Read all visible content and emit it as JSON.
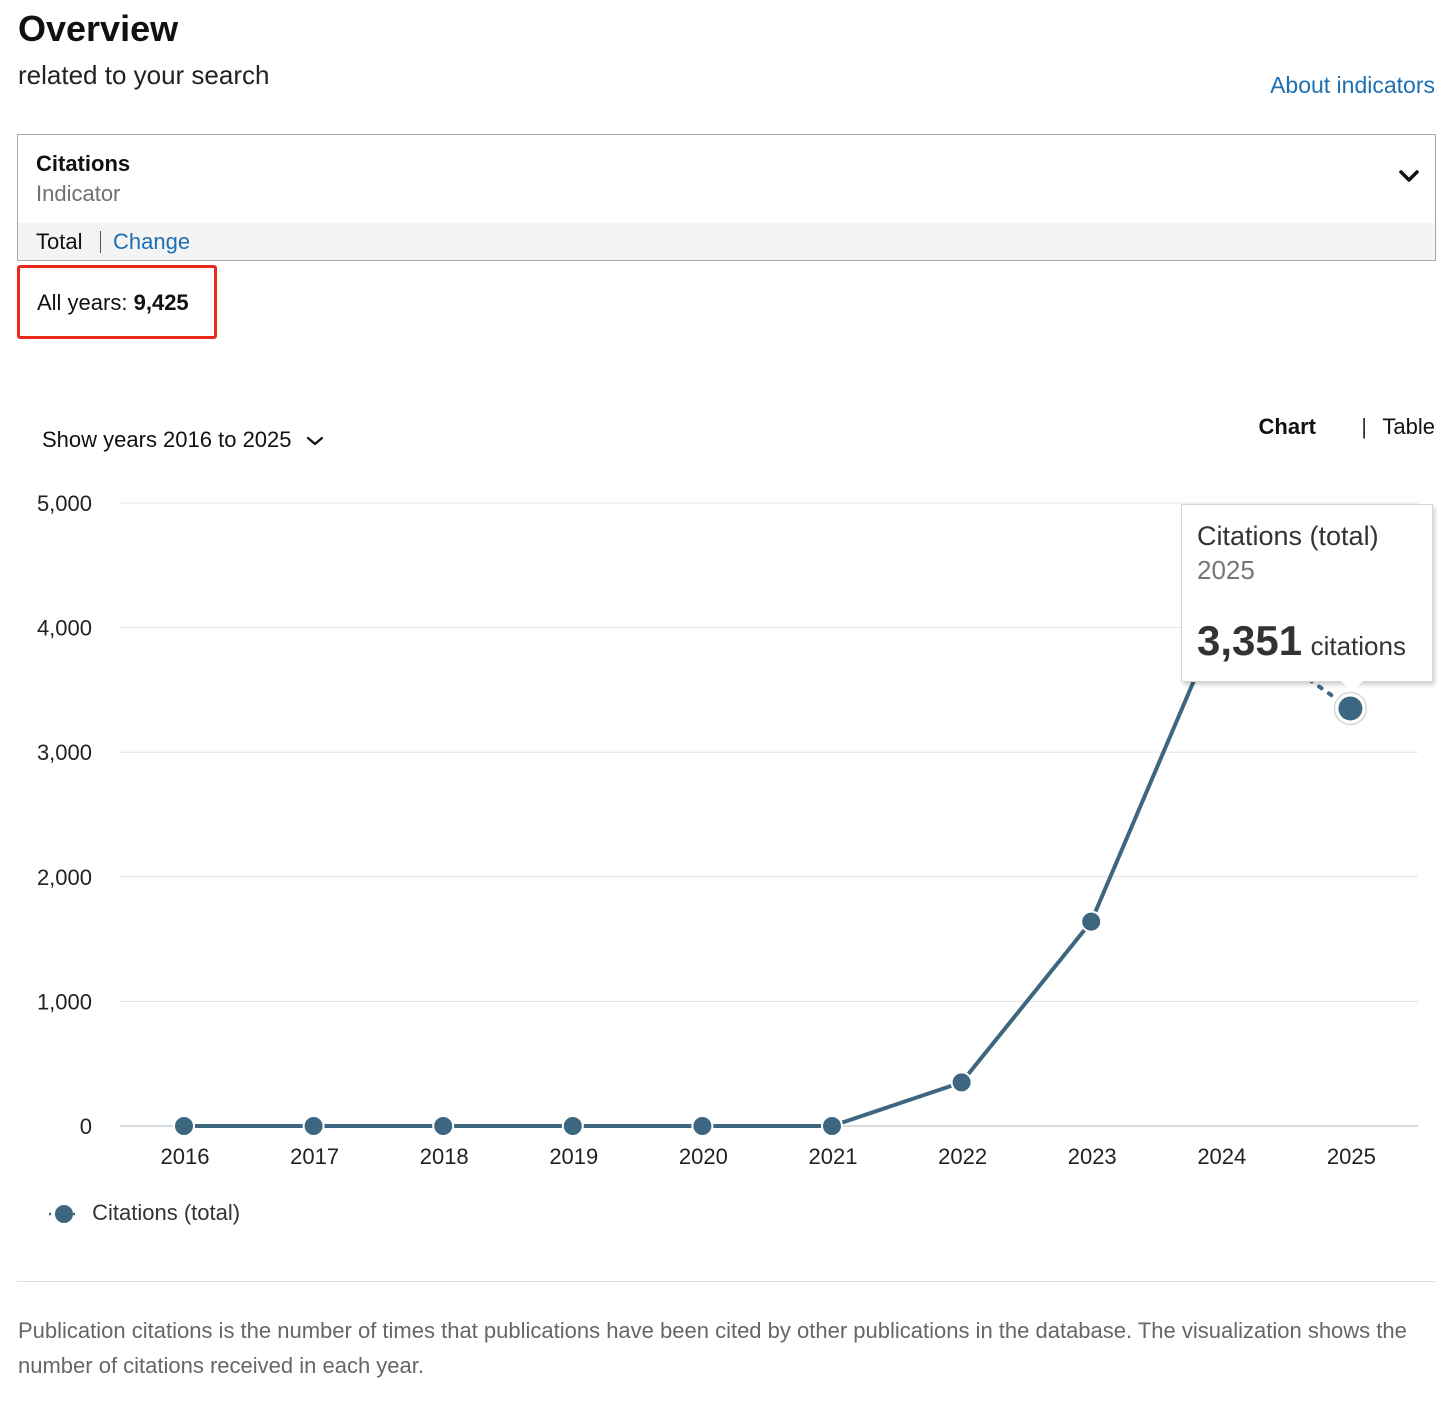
{
  "header": {
    "title": "Overview",
    "subtitle": "related to your search",
    "about_link": "About indicators"
  },
  "indicator": {
    "name": "Citations",
    "label": "Indicator"
  },
  "metric_bar": {
    "type": "Total",
    "change_link": "Change"
  },
  "all_years": {
    "label": "All years:",
    "value": "9,425"
  },
  "controls": {
    "years_select": "Show years 2016 to 2025",
    "tabs": [
      "Chart",
      "|",
      "Table"
    ]
  },
  "tooltip": {
    "series": "Citations (total)",
    "year": "2025",
    "value": "3,351",
    "unit": "citations"
  },
  "footnote": "Publication citations is the number of times that publications have been cited by other publications in the database. The visualization shows the number of citations received in each year.",
  "colors": {
    "series": "#3d6680",
    "link": "#1d6fb3",
    "highlight_border": "#e8291c",
    "grid": "#e3e3e3"
  },
  "chart_data": {
    "type": "line",
    "x": [
      "2016",
      "2017",
      "2018",
      "2019",
      "2020",
      "2021",
      "2022",
      "2023",
      "2024",
      "2025"
    ],
    "series": [
      {
        "name": "Citations (total)",
        "values": [
          0,
          0,
          0,
          0,
          0,
          0,
          350,
          1640,
          4080,
          3351
        ],
        "projected_last": true
      }
    ],
    "y_ticks": [
      "0",
      "1,000",
      "2,000",
      "3,000",
      "4,000",
      "5,000"
    ],
    "ylim": [
      0,
      5000
    ],
    "grid": true,
    "legend_position": "bottom-left"
  }
}
